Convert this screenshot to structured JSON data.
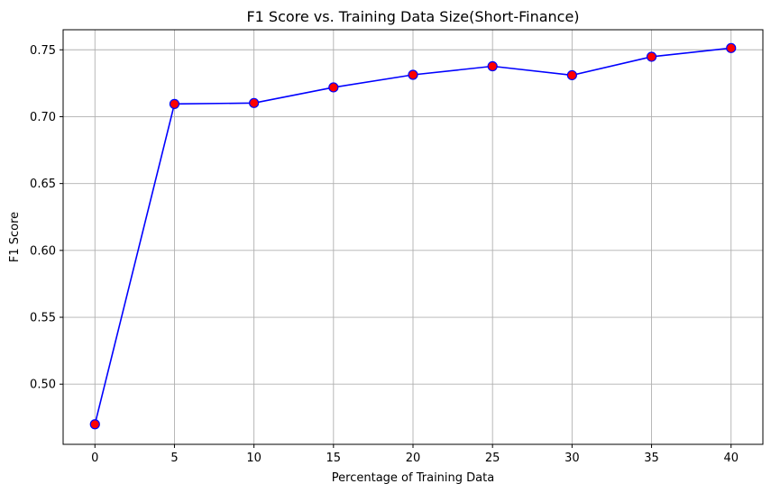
{
  "chart_data": {
    "type": "line",
    "title": "F1 Score vs. Training Data Size(Short-Finance)",
    "xlabel": "Percentage of Training Data",
    "ylabel": "F1 Score",
    "xlim": [
      -2,
      42
    ],
    "ylim": [
      0.455,
      0.765
    ],
    "x_ticks": [
      0,
      5,
      10,
      15,
      20,
      25,
      30,
      35,
      40
    ],
    "y_ticks": [
      0.5,
      0.55,
      0.6,
      0.65,
      0.7,
      0.75
    ],
    "grid": true,
    "series": [
      {
        "x": [
          0,
          5,
          10,
          15,
          20,
          25,
          30,
          35,
          40
        ],
        "y": [
          0.47,
          0.7095,
          0.7102,
          0.7219,
          0.7313,
          0.7377,
          0.731,
          0.7448,
          0.7513
        ],
        "line_color": "#0000ff",
        "marker_face_color": "#ff0000",
        "marker_edge_color": "#0000ff"
      }
    ],
    "grid_color": "#b0b0b0"
  }
}
